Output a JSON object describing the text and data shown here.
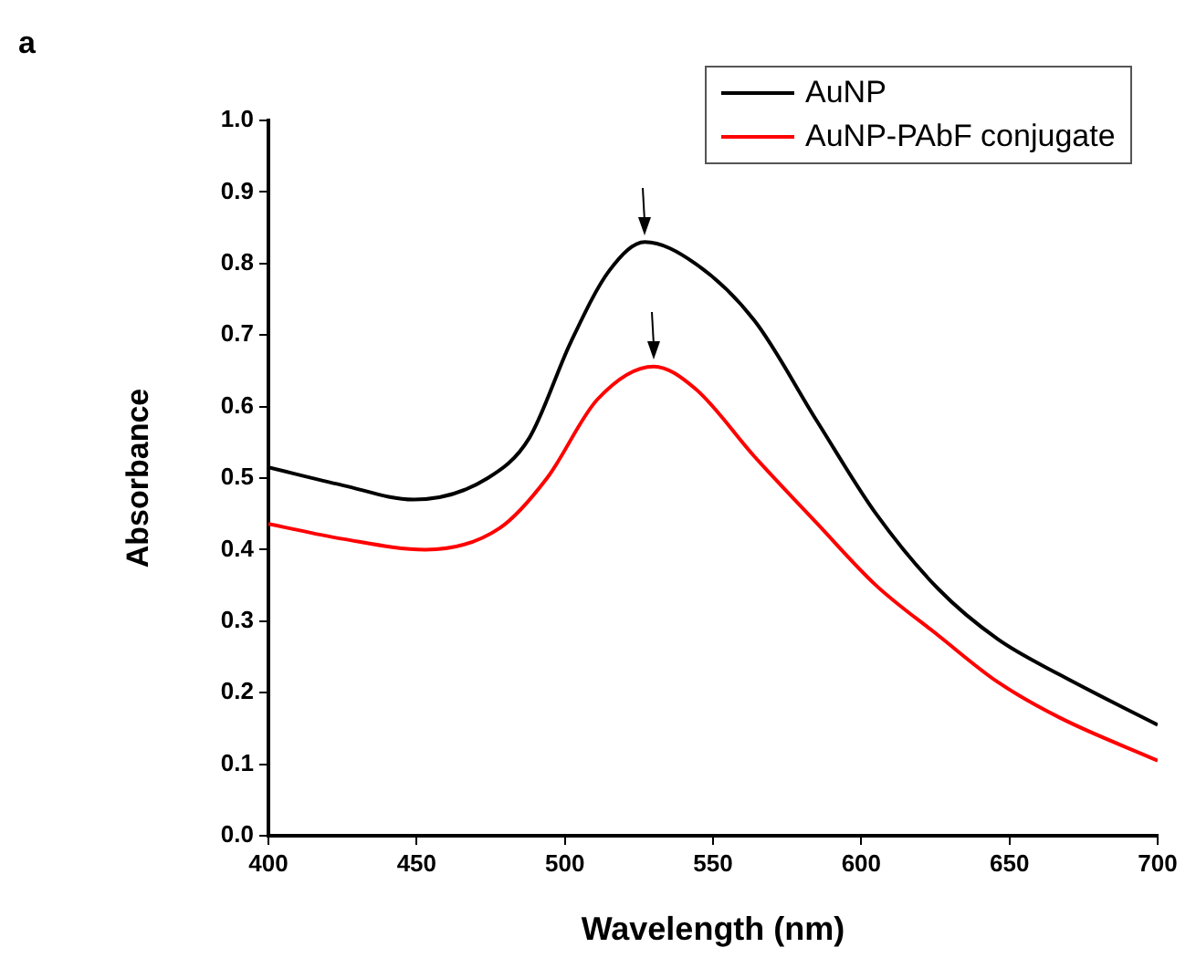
{
  "chart_data": {
    "type": "line",
    "xlabel": "Wavelength (nm)",
    "ylabel": "Absorbance",
    "annotations": [
      "a"
    ],
    "xlim": [
      400,
      700
    ],
    "xticks": [
      400,
      450,
      500,
      550,
      600,
      650,
      700
    ],
    "ylim": [
      0,
      1
    ],
    "yticks": [
      {
        "value": 0,
        "label": "0.0"
      },
      {
        "value": 0.1,
        "label": "0.1"
      },
      {
        "value": 0.2,
        "label": "0.2"
      },
      {
        "value": 0.3,
        "label": "0.3"
      },
      {
        "value": 0.4,
        "label": "0.4"
      },
      {
        "value": 0.5,
        "label": "0.5"
      },
      {
        "value": 0.6,
        "label": "0.6"
      },
      {
        "value": 0.7,
        "label": "0.7"
      },
      {
        "value": 0.8,
        "label": "0.8"
      },
      {
        "value": 0.9,
        "label": "0.9"
      },
      {
        "value": 1,
        "label": "1.0"
      }
    ],
    "grid": false,
    "legend": "top right",
    "marker": "none",
    "line_style": "solid",
    "series": [
      {
        "name": "AuNP",
        "color": "#000000",
        "x": [
          400,
          425,
          449,
          474,
          488,
          502,
          515,
          527,
          544,
          564,
          585,
          605,
          626,
          646,
          667,
          700
        ],
        "values": [
          0.515,
          0.49,
          0.47,
          0.5,
          0.556,
          0.69,
          0.79,
          0.83,
          0.8,
          0.72,
          0.58,
          0.45,
          0.345,
          0.275,
          0.225,
          0.155
        ]
      },
      {
        "name": "AuNP-PAbF conjugate",
        "color": "#ff0000",
        "x": [
          400,
          425,
          453,
          478,
          494,
          511,
          530,
          544,
          564,
          585,
          605,
          626,
          646,
          667,
          700
        ],
        "values": [
          0.436,
          0.415,
          0.4,
          0.43,
          0.5,
          0.61,
          0.656,
          0.625,
          0.53,
          0.437,
          0.35,
          0.28,
          0.215,
          0.165,
          0.105
        ]
      }
    ]
  }
}
